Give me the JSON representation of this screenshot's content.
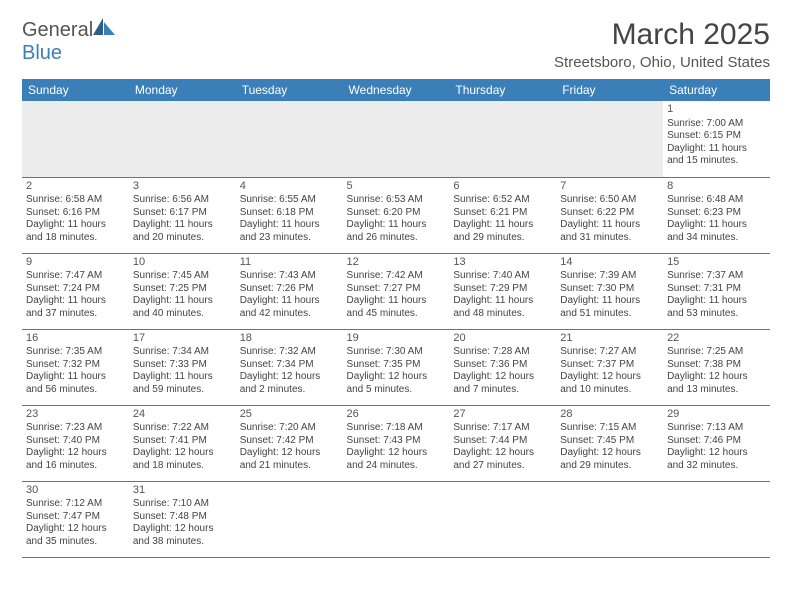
{
  "logo": {
    "word1": "General",
    "word2": "Blue"
  },
  "title": "March 2025",
  "location": "Streetsboro, Ohio, United States",
  "colors": {
    "header_bg": "#3a7fb8",
    "header_text": "#ffffff",
    "border": "#3a7fb8",
    "empty_bg": "#ececec",
    "text": "#444444"
  },
  "days_of_week": [
    "Sunday",
    "Monday",
    "Tuesday",
    "Wednesday",
    "Thursday",
    "Friday",
    "Saturday"
  ],
  "weeks": [
    [
      null,
      null,
      null,
      null,
      null,
      null,
      {
        "n": "1",
        "sunrise": "7:00 AM",
        "sunset": "6:15 PM",
        "day_h": "11",
        "day_m": "15"
      }
    ],
    [
      {
        "n": "2",
        "sunrise": "6:58 AM",
        "sunset": "6:16 PM",
        "day_h": "11",
        "day_m": "18"
      },
      {
        "n": "3",
        "sunrise": "6:56 AM",
        "sunset": "6:17 PM",
        "day_h": "11",
        "day_m": "20"
      },
      {
        "n": "4",
        "sunrise": "6:55 AM",
        "sunset": "6:18 PM",
        "day_h": "11",
        "day_m": "23"
      },
      {
        "n": "5",
        "sunrise": "6:53 AM",
        "sunset": "6:20 PM",
        "day_h": "11",
        "day_m": "26"
      },
      {
        "n": "6",
        "sunrise": "6:52 AM",
        "sunset": "6:21 PM",
        "day_h": "11",
        "day_m": "29"
      },
      {
        "n": "7",
        "sunrise": "6:50 AM",
        "sunset": "6:22 PM",
        "day_h": "11",
        "day_m": "31"
      },
      {
        "n": "8",
        "sunrise": "6:48 AM",
        "sunset": "6:23 PM",
        "day_h": "11",
        "day_m": "34"
      }
    ],
    [
      {
        "n": "9",
        "sunrise": "7:47 AM",
        "sunset": "7:24 PM",
        "day_h": "11",
        "day_m": "37"
      },
      {
        "n": "10",
        "sunrise": "7:45 AM",
        "sunset": "7:25 PM",
        "day_h": "11",
        "day_m": "40"
      },
      {
        "n": "11",
        "sunrise": "7:43 AM",
        "sunset": "7:26 PM",
        "day_h": "11",
        "day_m": "42"
      },
      {
        "n": "12",
        "sunrise": "7:42 AM",
        "sunset": "7:27 PM",
        "day_h": "11",
        "day_m": "45"
      },
      {
        "n": "13",
        "sunrise": "7:40 AM",
        "sunset": "7:29 PM",
        "day_h": "11",
        "day_m": "48"
      },
      {
        "n": "14",
        "sunrise": "7:39 AM",
        "sunset": "7:30 PM",
        "day_h": "11",
        "day_m": "51"
      },
      {
        "n": "15",
        "sunrise": "7:37 AM",
        "sunset": "7:31 PM",
        "day_h": "11",
        "day_m": "53"
      }
    ],
    [
      {
        "n": "16",
        "sunrise": "7:35 AM",
        "sunset": "7:32 PM",
        "day_h": "11",
        "day_m": "56"
      },
      {
        "n": "17",
        "sunrise": "7:34 AM",
        "sunset": "7:33 PM",
        "day_h": "11",
        "day_m": "59"
      },
      {
        "n": "18",
        "sunrise": "7:32 AM",
        "sunset": "7:34 PM",
        "day_h": "12",
        "day_m": "2"
      },
      {
        "n": "19",
        "sunrise": "7:30 AM",
        "sunset": "7:35 PM",
        "day_h": "12",
        "day_m": "5"
      },
      {
        "n": "20",
        "sunrise": "7:28 AM",
        "sunset": "7:36 PM",
        "day_h": "12",
        "day_m": "7"
      },
      {
        "n": "21",
        "sunrise": "7:27 AM",
        "sunset": "7:37 PM",
        "day_h": "12",
        "day_m": "10"
      },
      {
        "n": "22",
        "sunrise": "7:25 AM",
        "sunset": "7:38 PM",
        "day_h": "12",
        "day_m": "13"
      }
    ],
    [
      {
        "n": "23",
        "sunrise": "7:23 AM",
        "sunset": "7:40 PM",
        "day_h": "12",
        "day_m": "16"
      },
      {
        "n": "24",
        "sunrise": "7:22 AM",
        "sunset": "7:41 PM",
        "day_h": "12",
        "day_m": "18"
      },
      {
        "n": "25",
        "sunrise": "7:20 AM",
        "sunset": "7:42 PM",
        "day_h": "12",
        "day_m": "21"
      },
      {
        "n": "26",
        "sunrise": "7:18 AM",
        "sunset": "7:43 PM",
        "day_h": "12",
        "day_m": "24"
      },
      {
        "n": "27",
        "sunrise": "7:17 AM",
        "sunset": "7:44 PM",
        "day_h": "12",
        "day_m": "27"
      },
      {
        "n": "28",
        "sunrise": "7:15 AM",
        "sunset": "7:45 PM",
        "day_h": "12",
        "day_m": "29"
      },
      {
        "n": "29",
        "sunrise": "7:13 AM",
        "sunset": "7:46 PM",
        "day_h": "12",
        "day_m": "32"
      }
    ],
    [
      {
        "n": "30",
        "sunrise": "7:12 AM",
        "sunset": "7:47 PM",
        "day_h": "12",
        "day_m": "35"
      },
      {
        "n": "31",
        "sunrise": "7:10 AM",
        "sunset": "7:48 PM",
        "day_h": "12",
        "day_m": "38"
      },
      null,
      null,
      null,
      null,
      null
    ]
  ]
}
